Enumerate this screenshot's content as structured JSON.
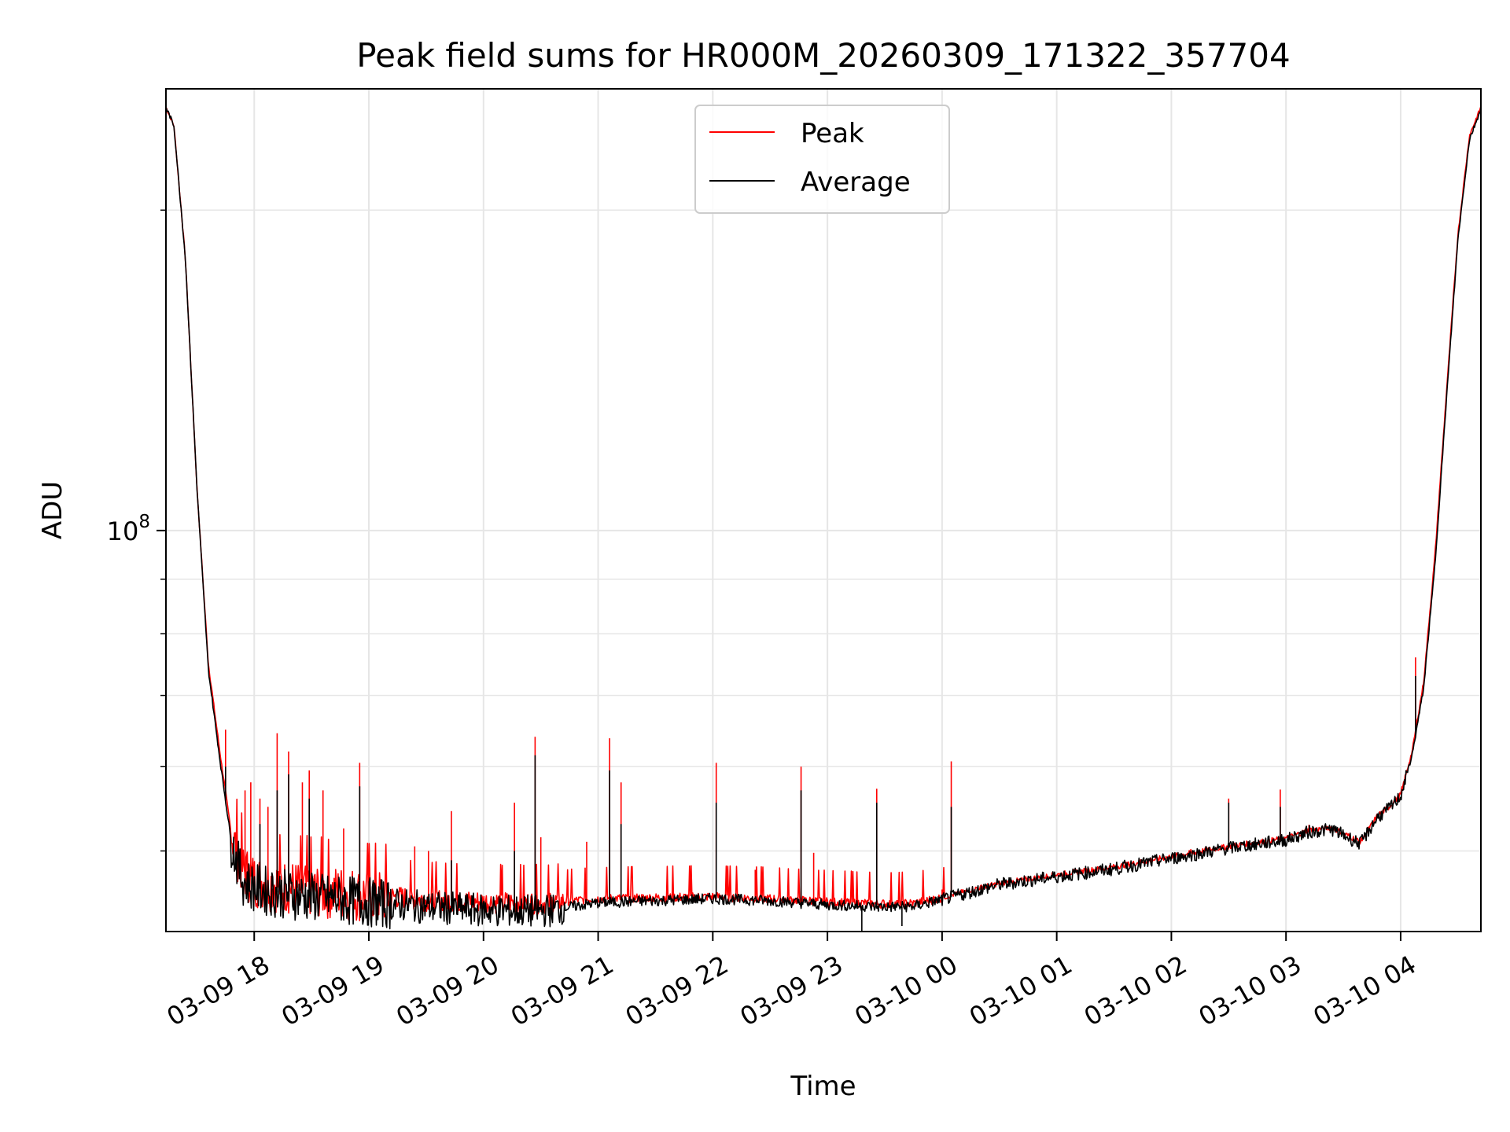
{
  "chart_data": {
    "type": "line",
    "title": "Peak field sums for HR000M_20260309_171322_357704",
    "xlabel": "Time",
    "ylabel": "ADU",
    "yscale": "log",
    "ylim": [
      42000000,
      260000000
    ],
    "xlim_hours": [
      17.23,
      28.7
    ],
    "grid": true,
    "legend_position": "top-center",
    "x_tick_hours": [
      18,
      19,
      20,
      21,
      22,
      23,
      24,
      25,
      26,
      27,
      28
    ],
    "x_tick_labels": [
      "03-09 18",
      "03-09 19",
      "03-09 20",
      "03-09 21",
      "03-09 22",
      "03-09 23",
      "03-10 00",
      "03-10 01",
      "03-10 02",
      "03-10 03",
      "03-10 04"
    ],
    "y_major_tick": {
      "value": 100000000,
      "base": "10",
      "exponent": "8"
    },
    "y_minor_ticks": [
      50000000,
      60000000,
      70000000,
      80000000,
      90000000,
      200000000
    ],
    "series": [
      {
        "name": "Peak",
        "color": "#ff0000",
        "x_hours": [
          17.23,
          17.3,
          17.4,
          17.5,
          17.6,
          17.7,
          17.8,
          17.9,
          18.0,
          18.2,
          18.5,
          19.0,
          19.5,
          20.0,
          20.5,
          21.0,
          21.5,
          22.0,
          22.5,
          23.0,
          23.5,
          23.75,
          24.0,
          24.3,
          24.5,
          25.0,
          25.5,
          26.0,
          26.5,
          27.0,
          27.2,
          27.4,
          27.6,
          27.65,
          27.8,
          27.9,
          28.0,
          28.1,
          28.2,
          28.3,
          28.4,
          28.5,
          28.6,
          28.7
        ],
        "values": [
          250000000,
          240000000,
          180000000,
          110000000,
          75000000,
          62000000,
          52000000,
          48000000,
          47000000,
          46500000,
          46000000,
          45500000,
          45000000,
          44800000,
          44700000,
          45100000,
          45200000,
          45300000,
          45100000,
          44800000,
          44600000,
          44650000,
          45200000,
          46100000,
          46600000,
          47500000,
          48300000,
          49400000,
          50500000,
          51400000,
          52300000,
          52600000,
          51300000,
          51000000,
          54000000,
          55000000,
          56500000,
          62000000,
          72000000,
          95000000,
          135000000,
          190000000,
          235000000,
          250000000
        ],
        "spikes": [
          {
            "x": 17.75,
            "y": 65000000
          },
          {
            "x": 17.92,
            "y": 57000000
          },
          {
            "x": 17.97,
            "y": 58000000
          },
          {
            "x": 18.05,
            "y": 56000000
          },
          {
            "x": 18.12,
            "y": 55000000
          },
          {
            "x": 18.2,
            "y": 64500000
          },
          {
            "x": 18.3,
            "y": 62000000
          },
          {
            "x": 18.42,
            "y": 58000000
          },
          {
            "x": 18.48,
            "y": 59500000
          },
          {
            "x": 18.6,
            "y": 57000000
          },
          {
            "x": 18.78,
            "y": 52500000
          },
          {
            "x": 18.92,
            "y": 60500000
          },
          {
            "x": 19.4,
            "y": 50500000
          },
          {
            "x": 19.52,
            "y": 50000000
          },
          {
            "x": 19.72,
            "y": 54500000
          },
          {
            "x": 20.27,
            "y": 55500000
          },
          {
            "x": 20.45,
            "y": 64000000
          },
          {
            "x": 20.5,
            "y": 51500000
          },
          {
            "x": 20.9,
            "y": 51000000
          },
          {
            "x": 21.1,
            "y": 63800000
          },
          {
            "x": 21.2,
            "y": 58000000
          },
          {
            "x": 22.03,
            "y": 60500000
          },
          {
            "x": 22.37,
            "y": 48000000
          },
          {
            "x": 22.77,
            "y": 60000000
          },
          {
            "x": 22.88,
            "y": 49800000
          },
          {
            "x": 23.43,
            "y": 57200000
          },
          {
            "x": 24.08,
            "y": 60700000
          },
          {
            "x": 24.0,
            "y": 46000000
          },
          {
            "x": 26.17,
            "y": 50200000
          },
          {
            "x": 26.5,
            "y": 56000000
          },
          {
            "x": 26.95,
            "y": 57100000
          },
          {
            "x": 27.2,
            "y": 52900000
          },
          {
            "x": 27.68,
            "y": 51600000
          },
          {
            "x": 28.02,
            "y": 57000000
          },
          {
            "x": 28.13,
            "y": 76000000
          }
        ]
      },
      {
        "name": "Average",
        "color": "#000000",
        "x_hours": [
          17.23,
          17.3,
          17.4,
          17.5,
          17.6,
          17.7,
          17.8,
          17.9,
          18.0,
          18.2,
          18.5,
          19.0,
          19.5,
          20.0,
          20.5,
          21.0,
          21.5,
          22.0,
          22.5,
          23.0,
          23.5,
          23.75,
          24.0,
          24.3,
          24.5,
          25.0,
          25.5,
          26.0,
          26.5,
          27.0,
          27.2,
          27.4,
          27.6,
          27.65,
          27.8,
          27.9,
          28.0,
          28.1,
          28.2,
          28.3,
          28.4,
          28.5,
          28.6,
          28.7
        ],
        "values": [
          250000000,
          240000000,
          180000000,
          110000000,
          74000000,
          61000000,
          51000000,
          47000000,
          46200000,
          45700000,
          45300000,
          44800000,
          44300000,
          44000000,
          43900000,
          44700000,
          44900000,
          45100000,
          44900000,
          44500000,
          44300000,
          44350000,
          45000000,
          45900000,
          46500000,
          47300000,
          48100000,
          49200000,
          50300000,
          51200000,
          52100000,
          52400000,
          51100000,
          50800000,
          53800000,
          54800000,
          56300000,
          61500000,
          71000000,
          93000000,
          133000000,
          188000000,
          233000000,
          249000000
        ],
        "spikes": [
          {
            "x": 17.75,
            "y": 60000000
          },
          {
            "x": 18.05,
            "y": 53000000
          },
          {
            "x": 18.2,
            "y": 57000000
          },
          {
            "x": 18.3,
            "y": 59000000
          },
          {
            "x": 18.48,
            "y": 56000000
          },
          {
            "x": 18.92,
            "y": 57500000
          },
          {
            "x": 19.72,
            "y": 49000000
          },
          {
            "x": 20.27,
            "y": 50000000
          },
          {
            "x": 20.45,
            "y": 61500000
          },
          {
            "x": 21.1,
            "y": 59500000
          },
          {
            "x": 21.2,
            "y": 53000000
          },
          {
            "x": 22.03,
            "y": 55500000
          },
          {
            "x": 22.77,
            "y": 57000000
          },
          {
            "x": 23.43,
            "y": 55500000
          },
          {
            "x": 24.08,
            "y": 55000000
          },
          {
            "x": 26.5,
            "y": 55500000
          },
          {
            "x": 26.95,
            "y": 55000000
          },
          {
            "x": 28.13,
            "y": 73000000
          },
          {
            "x": 23.3,
            "y": 42000000
          },
          {
            "x": 23.65,
            "y": 42500000
          }
        ]
      }
    ]
  }
}
